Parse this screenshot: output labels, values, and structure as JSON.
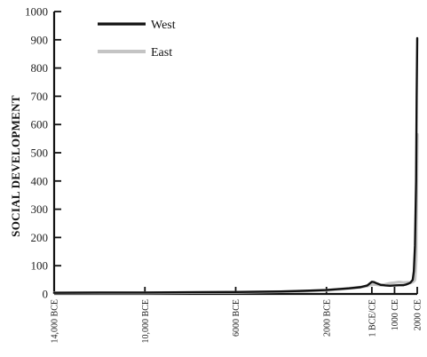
{
  "chart_data": {
    "type": "line",
    "title": "",
    "xlabel": "",
    "ylabel": "SOCIAL DEVELOPMENT",
    "ylim": [
      0,
      1000
    ],
    "yticks": [
      0,
      100,
      200,
      300,
      400,
      500,
      600,
      700,
      800,
      900,
      1000
    ],
    "xlim": [
      -14000,
      2000
    ],
    "xticks": [
      {
        "value": -14000,
        "label": "14,000 BCE"
      },
      {
        "value": -10000,
        "label": "10,000 BCE"
      },
      {
        "value": -6000,
        "label": "6000 BCE"
      },
      {
        "value": -2000,
        "label": "2000 BCE"
      },
      {
        "value": 0,
        "label": "1 BCE/CE"
      },
      {
        "value": 1000,
        "label": "1000 CE"
      },
      {
        "value": 2000,
        "label": "2000 CE"
      }
    ],
    "grid": false,
    "legend_position": "top-left",
    "series": [
      {
        "name": "West",
        "color": "#111111",
        "points": [
          [
            -14000,
            4
          ],
          [
            -12000,
            5
          ],
          [
            -10000,
            5
          ],
          [
            -8000,
            6
          ],
          [
            -6000,
            7
          ],
          [
            -4000,
            9
          ],
          [
            -3000,
            11
          ],
          [
            -2000,
            14
          ],
          [
            -1500,
            17
          ],
          [
            -1000,
            20
          ],
          [
            -500,
            24
          ],
          [
            -200,
            30
          ],
          [
            0,
            43
          ],
          [
            100,
            42
          ],
          [
            200,
            38
          ],
          [
            400,
            32
          ],
          [
            600,
            30
          ],
          [
            800,
            29
          ],
          [
            1000,
            30
          ],
          [
            1200,
            31
          ],
          [
            1400,
            31
          ],
          [
            1500,
            33
          ],
          [
            1600,
            36
          ],
          [
            1700,
            40
          ],
          [
            1800,
            50
          ],
          [
            1850,
            80
          ],
          [
            1900,
            170
          ],
          [
            1950,
            400
          ],
          [
            1975,
            700
          ],
          [
            2000,
            906
          ]
        ]
      },
      {
        "name": "East",
        "color": "#c4c4c4",
        "points": [
          [
            -14000,
            4
          ],
          [
            -12000,
            4
          ],
          [
            -10000,
            4
          ],
          [
            -8000,
            5
          ],
          [
            -6000,
            6
          ],
          [
            -4000,
            8
          ],
          [
            -3000,
            10
          ],
          [
            -2000,
            13
          ],
          [
            -1500,
            16
          ],
          [
            -1000,
            20
          ],
          [
            -500,
            24
          ],
          [
            -200,
            28
          ],
          [
            0,
            34
          ],
          [
            200,
            33
          ],
          [
            400,
            31
          ],
          [
            600,
            34
          ],
          [
            800,
            38
          ],
          [
            1000,
            40
          ],
          [
            1200,
            42
          ],
          [
            1400,
            40
          ],
          [
            1600,
            41
          ],
          [
            1700,
            40
          ],
          [
            1800,
            42
          ],
          [
            1850,
            45
          ],
          [
            1900,
            50
          ],
          [
            1950,
            120
          ],
          [
            1975,
            350
          ],
          [
            2000,
            565
          ]
        ]
      }
    ]
  }
}
